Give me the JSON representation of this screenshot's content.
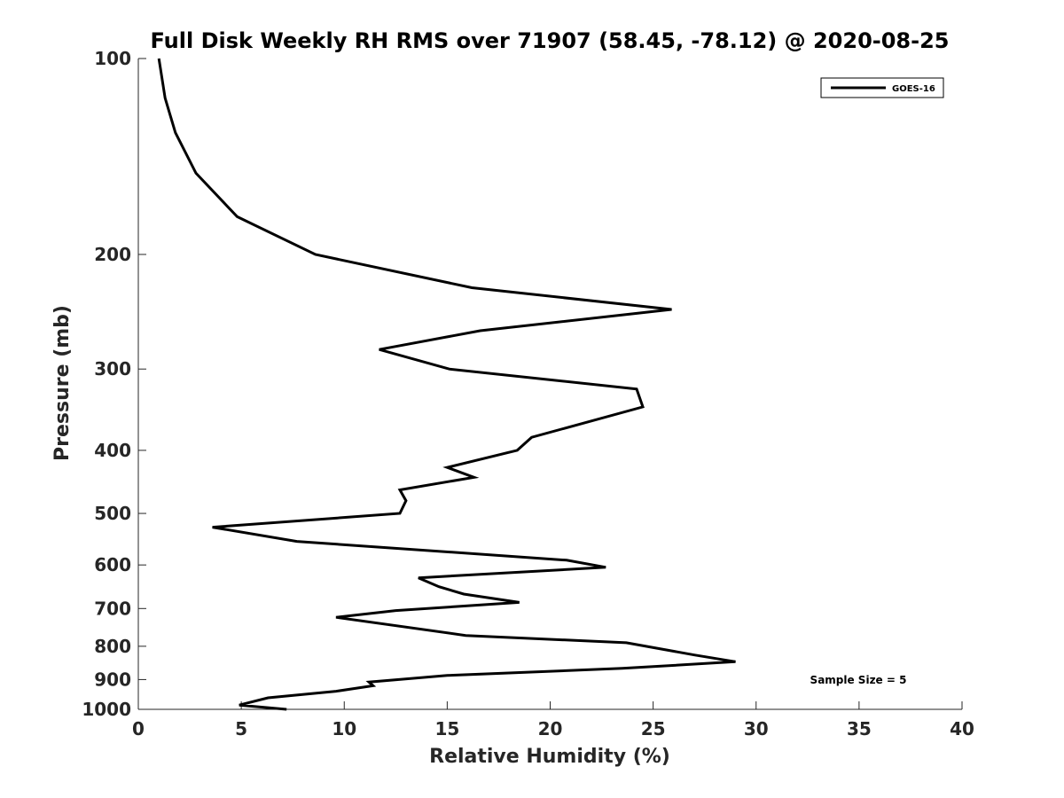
{
  "chart_data": {
    "type": "line",
    "title": "Full Disk Weekly RH RMS over 71907 (58.45, -78.12) @ 2020-08-25",
    "xlabel": "Relative Humidity (%)",
    "ylabel": "Pressure (mb)",
    "xlim": [
      0,
      40
    ],
    "ylim": [
      100,
      1000
    ],
    "y_scale": "log",
    "y_reversed": true,
    "x_ticks": [
      0,
      5,
      10,
      15,
      20,
      25,
      30,
      35,
      40
    ],
    "y_ticks": [
      100,
      200,
      300,
      400,
      500,
      600,
      700,
      800,
      900,
      1000
    ],
    "grid": false,
    "legend_position": "top-right",
    "annotation": "Sample Size = 5",
    "series": [
      {
        "name": "GOES-16",
        "color": "#000000",
        "points": [
          [
            1.0,
            100
          ],
          [
            1.3,
            115
          ],
          [
            1.8,
            130
          ],
          [
            2.8,
            150
          ],
          [
            4.8,
            175
          ],
          [
            8.6,
            200
          ],
          [
            16.2,
            225
          ],
          [
            25.9,
            243
          ],
          [
            16.6,
            262
          ],
          [
            11.7,
            280
          ],
          [
            15.1,
            300
          ],
          [
            24.2,
            322
          ],
          [
            24.5,
            343
          ],
          [
            19.1,
            382
          ],
          [
            18.4,
            400
          ],
          [
            15.0,
            425
          ],
          [
            16.3,
            440
          ],
          [
            12.7,
            460
          ],
          [
            13.0,
            478
          ],
          [
            12.7,
            500
          ],
          [
            3.6,
            525
          ],
          [
            7.7,
            552
          ],
          [
            20.8,
            590
          ],
          [
            22.7,
            605
          ],
          [
            13.6,
            628
          ],
          [
            14.6,
            648
          ],
          [
            15.8,
            665
          ],
          [
            18.5,
            685
          ],
          [
            12.5,
            705
          ],
          [
            9.6,
            722
          ],
          [
            15.9,
            770
          ],
          [
            23.7,
            790
          ],
          [
            27.0,
            825
          ],
          [
            29.0,
            845
          ],
          [
            23.5,
            865
          ],
          [
            15.0,
            887
          ],
          [
            11.2,
            908
          ],
          [
            11.4,
            920
          ],
          [
            9.6,
            938
          ],
          [
            6.3,
            960
          ],
          [
            4.9,
            985
          ],
          [
            7.2,
            1000
          ]
        ]
      }
    ]
  }
}
